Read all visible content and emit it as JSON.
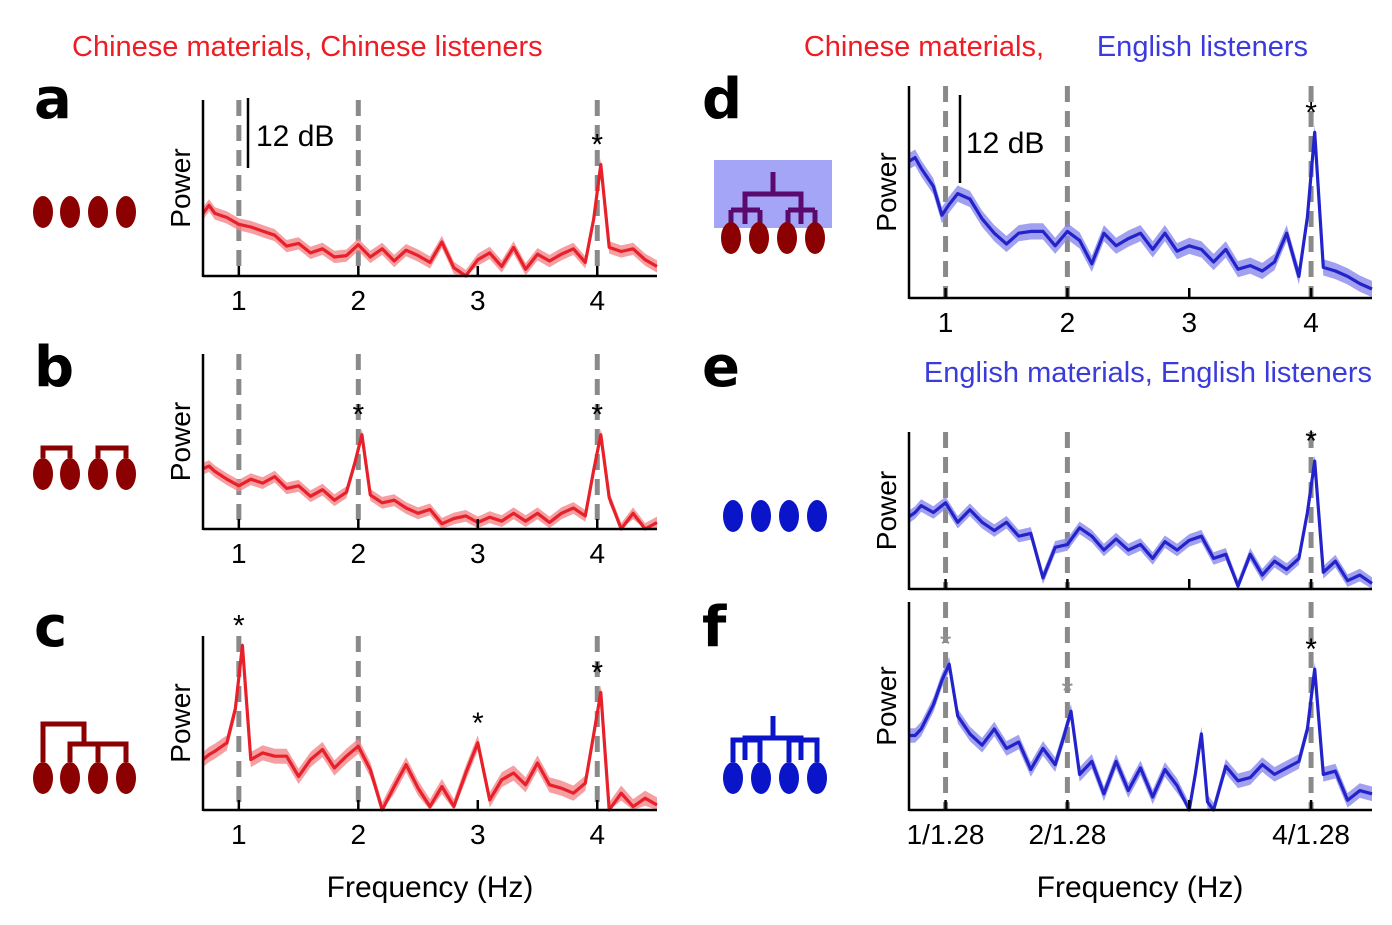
{
  "headers": {
    "left": {
      "text": "Chinese materials, Chinese listeners",
      "color": "#ee1c24"
    },
    "right_part1": {
      "text": "Chinese materials,",
      "color": "#ee1c24"
    },
    "right_part2": {
      "text": "English listeners",
      "color": "#3b3bdc"
    },
    "e": {
      "text": "English materials, English listeners",
      "color": "#3b3bdc"
    }
  },
  "colors": {
    "red_line": "#e8202a",
    "red_band": "#f2878b",
    "blue_line": "#2323cc",
    "blue_band": "#8a8aeb",
    "dark_red": "#8b0000",
    "blue_icon": "#0a14c8",
    "purple_tree": "#5a0a6e",
    "blue_box": "#8e8ef5",
    "dashed": "#8a8a8a",
    "grey_star": "#909090"
  },
  "scale_label": "12 dB",
  "xlabel": "Frequency (Hz)",
  "chart_data": [
    {
      "panel": "a",
      "type": "line",
      "ylabel": "Power",
      "icon": "four-syllables-red",
      "xlim": [
        0.7,
        4.5
      ],
      "ylim": [
        0,
        1
      ],
      "x_ticks": [
        "1",
        "2",
        "3",
        "4"
      ],
      "dashed_x": [
        1,
        2,
        4
      ],
      "stars": [
        {
          "x": 4,
          "gray": false
        }
      ],
      "series": [
        {
          "x": [
            0.7,
            0.75,
            0.8,
            0.9,
            1.0,
            1.1,
            1.2,
            1.3,
            1.4,
            1.5,
            1.6,
            1.7,
            1.8,
            1.9,
            2.0,
            2.1,
            2.2,
            2.3,
            2.4,
            2.5,
            2.6,
            2.7,
            2.8,
            2.9,
            3.0,
            3.1,
            3.2,
            3.3,
            3.4,
            3.5,
            3.6,
            3.7,
            3.8,
            3.9,
            3.97,
            4.03,
            4.1,
            4.2,
            4.3,
            4.4,
            4.5
          ],
          "y": [
            0.46,
            0.52,
            0.46,
            0.43,
            0.38,
            0.36,
            0.33,
            0.3,
            0.22,
            0.24,
            0.17,
            0.2,
            0.14,
            0.15,
            0.23,
            0.14,
            0.2,
            0.11,
            0.19,
            0.15,
            0.1,
            0.25,
            0.06,
            0.0,
            0.12,
            0.17,
            0.07,
            0.21,
            0.05,
            0.16,
            0.11,
            0.16,
            0.2,
            0.1,
            0.42,
            0.82,
            0.21,
            0.18,
            0.2,
            0.12,
            0.07
          ]
        }
      ]
    },
    {
      "panel": "b",
      "type": "line",
      "ylabel": "Power",
      "icon": "pairs-red",
      "xlim": [
        0.7,
        4.5
      ],
      "ylim": [
        0,
        1
      ],
      "x_ticks": [
        "1",
        "2",
        "3",
        "4"
      ],
      "dashed_x": [
        1,
        2,
        4
      ],
      "stars": [
        {
          "x": 2,
          "gray": false
        },
        {
          "x": 4,
          "gray": false
        }
      ],
      "series": [
        {
          "x": [
            0.7,
            0.75,
            0.8,
            0.9,
            1.0,
            1.1,
            1.2,
            1.3,
            1.4,
            1.5,
            1.6,
            1.7,
            1.8,
            1.9,
            1.97,
            2.03,
            2.1,
            2.2,
            2.3,
            2.4,
            2.5,
            2.6,
            2.7,
            2.8,
            2.9,
            3.0,
            3.1,
            3.2,
            3.3,
            3.4,
            3.5,
            3.6,
            3.7,
            3.8,
            3.9,
            3.97,
            4.03,
            4.1,
            4.2,
            4.3,
            4.4,
            4.5
          ],
          "y": [
            0.46,
            0.48,
            0.44,
            0.38,
            0.33,
            0.38,
            0.35,
            0.4,
            0.31,
            0.33,
            0.25,
            0.3,
            0.22,
            0.28,
            0.5,
            0.72,
            0.26,
            0.2,
            0.22,
            0.16,
            0.12,
            0.15,
            0.04,
            0.08,
            0.1,
            0.05,
            0.09,
            0.06,
            0.12,
            0.06,
            0.12,
            0.05,
            0.12,
            0.16,
            0.1,
            0.45,
            0.72,
            0.24,
            0.0,
            0.12,
            0.0,
            0.05
          ]
        }
      ]
    },
    {
      "panel": "c",
      "type": "line",
      "ylabel": "Power",
      "icon": "tree-red",
      "xlim": [
        0.7,
        4.5
      ],
      "ylim": [
        0,
        1
      ],
      "x_ticks": [
        "1",
        "2",
        "3",
        "4"
      ],
      "dashed_x": [
        1,
        2,
        4
      ],
      "stars": [
        {
          "x": 1,
          "gray": false
        },
        {
          "x": 3,
          "gray": false
        },
        {
          "x": 4,
          "gray": false
        }
      ],
      "series": [
        {
          "x": [
            0.7,
            0.75,
            0.8,
            0.9,
            0.97,
            1.03,
            1.1,
            1.2,
            1.3,
            1.4,
            1.5,
            1.6,
            1.7,
            1.8,
            1.9,
            2.0,
            2.1,
            2.2,
            2.3,
            2.4,
            2.5,
            2.6,
            2.7,
            2.8,
            2.9,
            3.0,
            3.1,
            3.2,
            3.3,
            3.4,
            3.5,
            3.6,
            3.7,
            3.8,
            3.9,
            3.97,
            4.03,
            4.1,
            4.2,
            4.3,
            4.4,
            4.5
          ],
          "y": [
            0.3,
            0.33,
            0.35,
            0.4,
            0.6,
            0.98,
            0.3,
            0.34,
            0.32,
            0.32,
            0.2,
            0.3,
            0.36,
            0.25,
            0.32,
            0.38,
            0.24,
            0.0,
            0.14,
            0.27,
            0.13,
            0.02,
            0.14,
            0.02,
            0.22,
            0.4,
            0.06,
            0.18,
            0.22,
            0.15,
            0.28,
            0.15,
            0.13,
            0.1,
            0.16,
            0.45,
            0.7,
            0.0,
            0.1,
            0.02,
            0.07,
            0.03
          ]
        }
      ]
    },
    {
      "panel": "d",
      "type": "line",
      "ylabel": "Power",
      "icon": "tree-purple-highlighted",
      "xlim": [
        0.7,
        4.5
      ],
      "ylim": [
        0,
        1
      ],
      "x_ticks": [
        "1",
        "2",
        "3",
        "4"
      ],
      "dashed_x": [
        1,
        2,
        4
      ],
      "stars": [
        {
          "x": 4,
          "gray": false
        }
      ],
      "series": [
        {
          "x": [
            0.7,
            0.75,
            0.8,
            0.9,
            0.97,
            1.03,
            1.1,
            1.2,
            1.3,
            1.4,
            1.5,
            1.6,
            1.7,
            1.8,
            1.9,
            2.0,
            2.1,
            2.2,
            2.3,
            2.4,
            2.5,
            2.6,
            2.7,
            2.8,
            2.9,
            3.0,
            3.1,
            3.2,
            3.3,
            3.4,
            3.5,
            3.6,
            3.7,
            3.8,
            3.9,
            3.97,
            4.03,
            4.1,
            4.2,
            4.3,
            4.4,
            4.5
          ],
          "y": [
            0.76,
            0.78,
            0.72,
            0.62,
            0.46,
            0.52,
            0.58,
            0.55,
            0.44,
            0.36,
            0.3,
            0.36,
            0.37,
            0.37,
            0.29,
            0.37,
            0.32,
            0.19,
            0.36,
            0.29,
            0.33,
            0.36,
            0.27,
            0.36,
            0.26,
            0.29,
            0.27,
            0.2,
            0.27,
            0.16,
            0.18,
            0.15,
            0.2,
            0.36,
            0.12,
            0.45,
            0.92,
            0.17,
            0.15,
            0.12,
            0.08,
            0.05
          ]
        }
      ]
    },
    {
      "panel": "e",
      "type": "line",
      "ylabel": "Power",
      "icon": "four-syllables-blue",
      "xlim": [
        0.7,
        4.5
      ],
      "ylim": [
        0,
        1
      ],
      "x_ticks": [],
      "dashed_x": [
        1,
        2,
        4
      ],
      "stars": [
        {
          "x": 4,
          "gray": false
        }
      ],
      "series": [
        {
          "x": [
            0.7,
            0.75,
            0.8,
            0.9,
            1.0,
            1.1,
            1.2,
            1.3,
            1.4,
            1.5,
            1.6,
            1.7,
            1.8,
            1.9,
            2.0,
            2.1,
            2.2,
            2.3,
            2.4,
            2.5,
            2.6,
            2.7,
            2.8,
            2.9,
            3.0,
            3.1,
            3.2,
            3.3,
            3.4,
            3.5,
            3.6,
            3.7,
            3.8,
            3.9,
            3.97,
            4.03,
            4.1,
            4.2,
            4.3,
            4.4,
            4.5
          ],
          "y": [
            0.52,
            0.55,
            0.6,
            0.55,
            0.62,
            0.48,
            0.57,
            0.48,
            0.42,
            0.48,
            0.38,
            0.4,
            0.08,
            0.3,
            0.32,
            0.44,
            0.38,
            0.28,
            0.36,
            0.28,
            0.32,
            0.22,
            0.34,
            0.28,
            0.35,
            0.38,
            0.22,
            0.25,
            0.02,
            0.25,
            0.1,
            0.2,
            0.14,
            0.22,
            0.55,
            0.92,
            0.12,
            0.2,
            0.06,
            0.1,
            0.04
          ]
        }
      ]
    },
    {
      "panel": "f",
      "type": "line",
      "ylabel": "Power",
      "icon": "tree-blue",
      "xlim": [
        0.7,
        4.5
      ],
      "ylim": [
        0,
        1
      ],
      "x_ticks": [
        "1/1.28",
        "2/1.28",
        "4/1.28"
      ],
      "dashed_x": [
        1,
        2,
        4
      ],
      "stars": [
        {
          "x": 1,
          "gray": true
        },
        {
          "x": 2,
          "gray": true
        },
        {
          "x": 4,
          "gray": false
        }
      ],
      "series": [
        {
          "x": [
            0.7,
            0.75,
            0.8,
            0.9,
            0.97,
            1.03,
            1.1,
            1.2,
            1.3,
            1.4,
            1.5,
            1.6,
            1.7,
            1.8,
            1.9,
            1.97,
            2.03,
            2.1,
            2.2,
            2.3,
            2.4,
            2.5,
            2.6,
            2.7,
            2.8,
            2.9,
            3.0,
            3.05,
            3.1,
            3.15,
            3.2,
            3.3,
            3.4,
            3.5,
            3.6,
            3.7,
            3.8,
            3.9,
            3.97,
            4.03,
            4.1,
            4.2,
            4.3,
            4.4,
            4.5
          ],
          "y": [
            0.46,
            0.46,
            0.5,
            0.65,
            0.8,
            0.9,
            0.58,
            0.47,
            0.4,
            0.5,
            0.38,
            0.42,
            0.25,
            0.38,
            0.28,
            0.45,
            0.61,
            0.22,
            0.3,
            0.1,
            0.3,
            0.12,
            0.26,
            0.08,
            0.25,
            0.15,
            0.0,
            0.22,
            0.47,
            0.05,
            0.0,
            0.27,
            0.18,
            0.2,
            0.28,
            0.22,
            0.26,
            0.3,
            0.5,
            0.87,
            0.22,
            0.24,
            0.06,
            0.12,
            0.1
          ]
        }
      ]
    }
  ]
}
